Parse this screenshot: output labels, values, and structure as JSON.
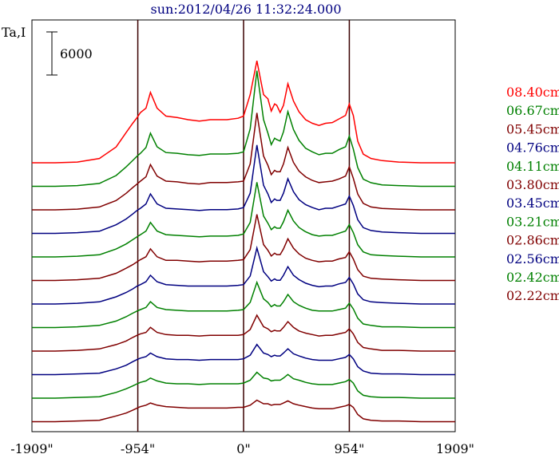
{
  "title": "sun:2012/04/26 11:32:24.000",
  "ylabel": "Ta,I",
  "scale_bar_label": "6000",
  "chart_data": {
    "type": "line",
    "title": "sun:2012/04/26 11:32:24.000",
    "xlabel": "",
    "ylabel": "Ta,I",
    "xlim": [
      -1909,
      1909
    ],
    "x_ticks": [
      "-1909\"",
      "-954\"",
      "0\"",
      "954\"",
      "1909\""
    ],
    "x_tick_values": [
      -1909,
      -954,
      0,
      954,
      1909
    ],
    "vlines": [
      -954,
      0,
      954
    ],
    "scale_bar": 6000,
    "grid": false,
    "legend_position": "right",
    "x": [
      -1909,
      -1700,
      -1500,
      -1300,
      -1150,
      -1060,
      -1000,
      -960,
      -930,
      -880,
      -840,
      -780,
      -700,
      -600,
      -500,
      -400,
      -300,
      -150,
      -50,
      0,
      60,
      120,
      180,
      220,
      250,
      280,
      300,
      330,
      360,
      400,
      450,
      500,
      560,
      620,
      680,
      740,
      800,
      860,
      920,
      954,
      990,
      1030,
      1080,
      1150,
      1250,
      1400,
      1600,
      1909
    ],
    "series": [
      {
        "name": "08.40cm",
        "color": "#ff0000",
        "values": [
          0,
          0,
          100,
          600,
          2200,
          4200,
          5500,
          6300,
          7000,
          7600,
          9800,
          7600,
          6500,
          6300,
          6000,
          5800,
          6000,
          6000,
          6200,
          6500,
          9500,
          14200,
          9500,
          8900,
          7200,
          8200,
          8000,
          7000,
          8000,
          11000,
          8600,
          7100,
          6000,
          5500,
          5200,
          5500,
          5600,
          6100,
          6600,
          8200,
          6600,
          3000,
          1200,
          600,
          300,
          100,
          0,
          0
        ]
      },
      {
        "name": "06.67cm",
        "color": "#008000",
        "values": [
          0,
          0,
          100,
          400,
          1500,
          2700,
          3600,
          4200,
          4600,
          5400,
          7400,
          5500,
          4700,
          4600,
          4400,
          4300,
          4500,
          4500,
          4600,
          4800,
          8000,
          16100,
          9300,
          7400,
          5800,
          6700,
          6500,
          6300,
          7600,
          10400,
          7900,
          6400,
          5300,
          4800,
          4400,
          4600,
          4600,
          5100,
          5500,
          7000,
          5200,
          2600,
          1000,
          500,
          200,
          100,
          0,
          0
        ]
      },
      {
        "name": "05.45cm",
        "color": "#800000",
        "values": [
          0,
          0,
          100,
          400,
          1300,
          2300,
          3100,
          3600,
          4000,
          4600,
          6300,
          4700,
          4000,
          3900,
          3700,
          3600,
          3800,
          3800,
          3900,
          4000,
          6400,
          13500,
          7500,
          6200,
          4900,
          5500,
          5300,
          5300,
          6400,
          8700,
          6600,
          5400,
          4600,
          4100,
          3800,
          3900,
          4000,
          4300,
          4700,
          6000,
          4400,
          2200,
          900,
          400,
          200,
          100,
          0,
          0
        ]
      },
      {
        "name": "04.76cm",
        "color": "#000080",
        "values": [
          0,
          0,
          100,
          300,
          1200,
          2000,
          2700,
          3200,
          3500,
          4100,
          5500,
          4100,
          3500,
          3400,
          3300,
          3200,
          3300,
          3300,
          3400,
          3600,
          5600,
          12300,
          6700,
          5500,
          4300,
          4800,
          4600,
          4600,
          5600,
          7600,
          5800,
          4700,
          4000,
          3600,
          3300,
          3500,
          3500,
          3800,
          4100,
          5200,
          3900,
          1900,
          800,
          400,
          200,
          100,
          0,
          0
        ]
      },
      {
        "name": "04.11cm",
        "color": "#008000",
        "values": [
          0,
          0,
          100,
          300,
          1100,
          1800,
          2400,
          2800,
          3100,
          3600,
          4800,
          3600,
          3100,
          3000,
          2900,
          2800,
          2900,
          2900,
          3000,
          3200,
          4800,
          10400,
          5700,
          4700,
          3800,
          4200,
          4000,
          4000,
          4900,
          6500,
          5000,
          4100,
          3500,
          3100,
          2900,
          3000,
          3000,
          3300,
          3600,
          4500,
          3400,
          1700,
          700,
          300,
          200,
          100,
          0,
          0
        ]
      },
      {
        "name": "03.80cm",
        "color": "#800000",
        "values": [
          0,
          0,
          100,
          300,
          1000,
          1700,
          2200,
          2600,
          2900,
          3300,
          4400,
          3300,
          2800,
          2800,
          2700,
          2600,
          2700,
          2700,
          2800,
          2900,
          4300,
          9200,
          5000,
          4200,
          3400,
          3800,
          3600,
          3600,
          4400,
          5800,
          4500,
          3700,
          3100,
          2800,
          2600,
          2700,
          2700,
          3000,
          3200,
          4000,
          3000,
          1500,
          600,
          300,
          200,
          100,
          0,
          0
        ]
      },
      {
        "name": "03.45cm",
        "color": "#000080",
        "values": [
          0,
          0,
          100,
          300,
          1000,
          1600,
          2100,
          2500,
          2700,
          3100,
          4000,
          3100,
          2700,
          2600,
          2500,
          2500,
          2500,
          2500,
          2600,
          2700,
          3900,
          7800,
          4500,
          3800,
          3200,
          3500,
          3300,
          3300,
          4000,
          5200,
          4000,
          3400,
          2900,
          2600,
          2400,
          2500,
          2500,
          2800,
          3000,
          3700,
          2800,
          1400,
          600,
          300,
          200,
          100,
          0,
          0
        ]
      },
      {
        "name": "03.21cm",
        "color": "#008000",
        "values": [
          0,
          0,
          100,
          300,
          900,
          1500,
          2000,
          2300,
          2500,
          2800,
          3600,
          2800,
          2500,
          2400,
          2300,
          2300,
          2300,
          2300,
          2400,
          2500,
          3500,
          6300,
          4000,
          3500,
          2900,
          3200,
          3000,
          3000,
          3600,
          4600,
          3600,
          3100,
          2700,
          2400,
          2300,
          2300,
          2300,
          2500,
          2700,
          3400,
          2600,
          1300,
          500,
          300,
          100,
          100,
          0,
          0
        ]
      },
      {
        "name": "02.86cm",
        "color": "#800000",
        "values": [
          0,
          0,
          100,
          300,
          900,
          1400,
          1900,
          2200,
          2400,
          2600,
          3300,
          2600,
          2300,
          2200,
          2200,
          2100,
          2200,
          2200,
          2200,
          2300,
          3000,
          5000,
          3400,
          3100,
          2700,
          2900,
          2800,
          2800,
          3300,
          4100,
          3300,
          2800,
          2500,
          2300,
          2100,
          2200,
          2200,
          2400,
          2600,
          3100,
          2400,
          1200,
          500,
          300,
          100,
          100,
          0,
          0
        ]
      },
      {
        "name": "02.56cm",
        "color": "#000080",
        "values": [
          0,
          0,
          100,
          200,
          800,
          1300,
          1800,
          2100,
          2300,
          2500,
          3000,
          2500,
          2200,
          2100,
          2100,
          2000,
          2100,
          2100,
          2100,
          2200,
          2700,
          4200,
          3000,
          2800,
          2500,
          2700,
          2600,
          2600,
          3000,
          3600,
          2900,
          2600,
          2300,
          2100,
          2000,
          2000,
          2000,
          2200,
          2400,
          2800,
          2200,
          1100,
          500,
          200,
          100,
          100,
          0,
          0
        ]
      },
      {
        "name": "02.42cm",
        "color": "#008000",
        "values": [
          0,
          0,
          100,
          200,
          800,
          1300,
          1700,
          2000,
          2200,
          2400,
          2800,
          2400,
          2100,
          2000,
          2000,
          1900,
          2000,
          2000,
          2000,
          2100,
          2500,
          3600,
          2800,
          2700,
          2400,
          2500,
          2500,
          2500,
          2800,
          3300,
          2700,
          2500,
          2200,
          2000,
          1900,
          1900,
          1900,
          2100,
          2300,
          2600,
          2100,
          1000,
          400,
          200,
          100,
          100,
          0,
          0
        ]
      },
      {
        "name": "02.22cm",
        "color": "#800000",
        "values": [
          0,
          0,
          100,
          200,
          800,
          1200,
          1600,
          1900,
          2100,
          2300,
          2600,
          2300,
          2100,
          2000,
          1900,
          1900,
          1900,
          1900,
          2000,
          2000,
          2300,
          3000,
          2500,
          2500,
          2300,
          2400,
          2400,
          2400,
          2600,
          2900,
          2500,
          2300,
          2100,
          1900,
          1800,
          1800,
          1800,
          2000,
          2200,
          2400,
          2000,
          1000,
          400,
          200,
          100,
          100,
          0,
          0
        ]
      }
    ]
  }
}
